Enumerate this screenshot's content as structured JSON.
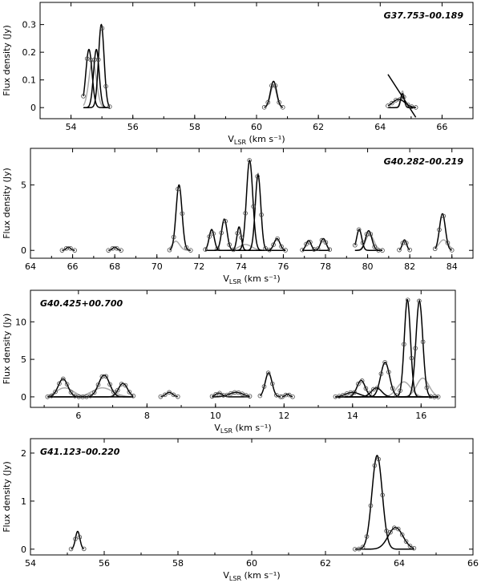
{
  "chart_data": [
    {
      "type": "line",
      "title": "G37.753–00.189",
      "xlabel": "V_LSR (km s⁻¹)",
      "ylabel": "Flux density (Jy)",
      "xlim": [
        53,
        67
      ],
      "ylim": [
        -0.04,
        0.38
      ],
      "xticks": [
        54,
        56,
        58,
        60,
        62,
        64,
        66
      ],
      "yticks": [
        0,
        0.1,
        0.2,
        0.3
      ],
      "yticklabels": [
        "0",
        "0.1",
        "0.2",
        "0.3"
      ],
      "segments": [
        {
          "range": [
            54.4,
            55.25
          ],
          "gray": [
            [
              54.7,
              0.17,
              0.12
            ]
          ],
          "black": [
            [
              54.58,
              0.21,
              0.1
            ],
            [
              54.82,
              0.21,
              0.09
            ],
            [
              54.98,
              0.3,
              0.09
            ]
          ]
        },
        {
          "range": [
            60.25,
            60.85
          ],
          "gray": [
            [
              60.55,
              0.08,
              0.1
            ]
          ],
          "black": [
            [
              60.55,
              0.095,
              0.1
            ]
          ]
        },
        {
          "range": [
            64.25,
            65.15
          ],
          "gray": [
            [
              64.72,
              0.06,
              0.05
            ]
          ],
          "black": [
            [
              64.6,
              0.03,
              0.2
            ],
            [
              64.72,
              0.05,
              0.06
            ]
          ],
          "line": [
            0.12,
            -0.035
          ]
        }
      ]
    },
    {
      "type": "line",
      "title": "G40.282–00.219",
      "xlabel": "V_LSR (km s⁻¹)",
      "ylabel": "Flux density (Jy)",
      "xlim": [
        64,
        85
      ],
      "ylim": [
        -0.6,
        7.8
      ],
      "xticks": [
        64,
        66,
        68,
        70,
        72,
        74,
        76,
        78,
        80,
        82,
        84
      ],
      "yticks": [
        0,
        5
      ],
      "yticklabels": [
        "0",
        "5"
      ],
      "segments": [
        {
          "range": [
            65.5,
            66.1
          ],
          "gray": [],
          "black": [
            [
              65.8,
              0.25,
              0.1
            ]
          ]
        },
        {
          "range": [
            67.7,
            68.3
          ],
          "gray": [],
          "black": [
            [
              68.0,
              0.25,
              0.1
            ]
          ]
        },
        {
          "range": [
            70.6,
            71.6
          ],
          "gray": [
            [
              70.9,
              0.7,
              0.18
            ]
          ],
          "black": [
            [
              71.05,
              5.0,
              0.14
            ]
          ]
        },
        {
          "range": [
            72.3,
            76.1
          ],
          "gray": [
            [
              74.2,
              0.45,
              0.3
            ]
          ],
          "black": [
            [
              72.6,
              1.6,
              0.12
            ],
            [
              73.2,
              2.4,
              0.13
            ],
            [
              73.9,
              1.8,
              0.1
            ],
            [
              74.4,
              6.9,
              0.15
            ],
            [
              74.8,
              5.8,
              0.13
            ],
            [
              75.7,
              0.9,
              0.14
            ]
          ]
        },
        {
          "range": [
            76.9,
            78.2
          ],
          "gray": [],
          "black": [
            [
              77.2,
              0.75,
              0.12
            ],
            [
              77.9,
              0.9,
              0.13
            ]
          ]
        },
        {
          "range": [
            79.4,
            80.7
          ],
          "gray": [
            [
              80.1,
              1.2,
              0.2
            ]
          ],
          "black": [
            [
              79.6,
              1.6,
              0.12
            ],
            [
              80.05,
              1.5,
              0.15
            ]
          ]
        },
        {
          "range": [
            81.5,
            82.0
          ],
          "gray": [],
          "black": [
            [
              81.75,
              0.8,
              0.1
            ]
          ]
        },
        {
          "range": [
            83.2,
            84.0
          ],
          "gray": [
            [
              83.6,
              0.8,
              0.22
            ]
          ],
          "black": [
            [
              83.55,
              2.8,
              0.14
            ]
          ]
        }
      ]
    },
    {
      "type": "line",
      "title": "G40.425+00.700",
      "xlabel": "V_LSR (km s⁻¹)",
      "ylabel": "Flux density (Jy)",
      "xlim": [
        4.6,
        17.0
      ],
      "ylim": [
        -1.4,
        14.2
      ],
      "xticks": [
        6,
        8,
        10,
        12,
        14,
        16
      ],
      "yticks": [
        0,
        5,
        10
      ],
      "yticklabels": [
        "0",
        "5",
        "10"
      ],
      "segments": [
        {
          "range": [
            5.1,
            7.6
          ],
          "gray": [
            [
              5.6,
              1.2,
              0.25
            ],
            [
              6.7,
              1.2,
              0.3
            ]
          ],
          "black": [
            [
              5.55,
              2.4,
              0.14
            ],
            [
              6.75,
              2.9,
              0.16
            ],
            [
              7.3,
              1.8,
              0.13
            ]
          ]
        },
        {
          "range": [
            8.4,
            8.9
          ],
          "gray": [],
          "black": [
            [
              8.65,
              0.6,
              0.1
            ]
          ]
        },
        {
          "range": [
            9.9,
            11.0
          ],
          "gray": [],
          "black": [
            [
              10.1,
              0.5,
              0.1
            ],
            [
              10.6,
              0.6,
              0.2
            ]
          ]
        },
        {
          "range": [
            11.3,
            11.9
          ],
          "gray": [],
          "black": [
            [
              11.55,
              3.2,
              0.1
            ]
          ]
        },
        {
          "range": [
            11.95,
            12.25
          ],
          "gray": [],
          "black": [
            [
              12.1,
              0.35,
              0.06
            ]
          ]
        },
        {
          "range": [
            13.5,
            16.5
          ],
          "gray": [
            [
              15.5,
              2.0,
              0.2
            ],
            [
              16.05,
              2.5,
              0.18
            ]
          ],
          "black": [
            [
              14.0,
              0.6,
              0.2
            ],
            [
              14.25,
              2.2,
              0.12
            ],
            [
              14.7,
              1.2,
              0.15
            ],
            [
              14.95,
              4.6,
              0.13
            ],
            [
              15.6,
              13.0,
              0.09
            ],
            [
              15.95,
              12.8,
              0.1
            ]
          ]
        }
      ]
    },
    {
      "type": "line",
      "title": "G41.123–00.220",
      "xlabel": "V_LSR (km s⁻¹)",
      "ylabel": "Flux density (Jy)",
      "xlim": [
        54,
        66
      ],
      "ylim": [
        -0.12,
        2.3
      ],
      "xticks": [
        54,
        56,
        58,
        60,
        62,
        64,
        66
      ],
      "yticks": [
        0,
        1,
        2
      ],
      "yticklabels": [
        "0",
        "1",
        "2"
      ],
      "segments": [
        {
          "range": [
            55.1,
            55.45
          ],
          "gray": [],
          "black": [
            [
              55.28,
              0.37,
              0.06
            ]
          ]
        },
        {
          "range": [
            62.8,
            64.4
          ],
          "gray": [],
          "black": [
            [
              63.4,
              1.95,
              0.14
            ],
            [
              63.9,
              0.45,
              0.2
            ]
          ]
        }
      ]
    }
  ]
}
